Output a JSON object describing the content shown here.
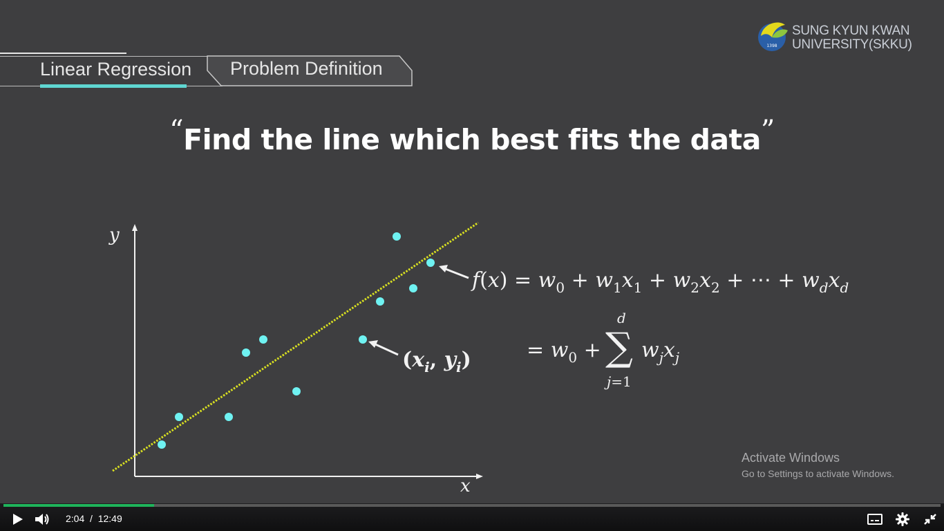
{
  "logo": {
    "line1": "SUNG KYUN KWAN",
    "line2": "UNIVERSITY(SKKU)",
    "seal_year": "1398"
  },
  "breadcrumb": {
    "section": "Linear Regression",
    "topic": "Problem Definition"
  },
  "slide": {
    "quote_open": "“",
    "title": "Find the line which best fits the data",
    "quote_close": "”"
  },
  "plot": {
    "x_label": "x",
    "y_label": "y",
    "point_label": "(x_i, y_i)",
    "colors": {
      "points": "#6ff2f2",
      "fit_line": "#d9e021",
      "axis": "#f2f2f2"
    }
  },
  "equation": {
    "f_lhs": "f(x)",
    "eq_sign": "=",
    "sum_upper": "d",
    "sum_lower": "j=1"
  },
  "watermark": {
    "title": "Activate Windows",
    "subtitle": "Go to Settings to activate Windows."
  },
  "player": {
    "current_time": "2:04",
    "separator": "/",
    "duration": "12:49",
    "progress_fraction": 0.161
  }
}
